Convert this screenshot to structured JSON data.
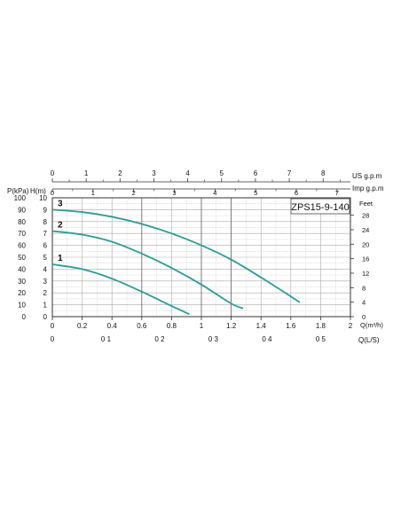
{
  "chart_data": {
    "type": "line",
    "model_label": "ZPS15-9-140",
    "x_axis": {
      "label": "Q(m³/h)",
      "min": 0,
      "max": 2,
      "ticks": [
        0,
        0.2,
        0.4,
        0.6,
        0.8,
        1,
        1.2,
        1.4,
        1.6,
        1.8,
        2
      ]
    },
    "y_axis": {
      "label": "H(m)",
      "min": 0,
      "max": 10,
      "ticks": [
        0,
        1,
        2,
        3,
        4,
        5,
        6,
        7,
        8,
        9,
        10
      ]
    },
    "kpa_axis": {
      "label": "P(kPa)",
      "ticks": [
        0,
        10,
        20,
        30,
        40,
        50,
        60,
        70,
        80,
        90,
        100
      ]
    },
    "feet_axis": {
      "label": "Feet",
      "ticks": [
        0,
        4,
        8,
        12,
        16,
        20,
        24,
        28
      ]
    },
    "us_gpm_axis": {
      "label": "US  g.p.m",
      "ticks": [
        0,
        1,
        2,
        3,
        4,
        5,
        6,
        7,
        8
      ]
    },
    "imp_gpm_axis": {
      "label": "Imp  g.p.m",
      "ticks": [
        0,
        1,
        2,
        3,
        4,
        5,
        6,
        7
      ]
    },
    "ls_axis": {
      "label": "Q(L/S)",
      "ticks": [
        "0",
        "0 1",
        "0 2",
        "0 3",
        "0 4",
        "0 5"
      ]
    },
    "grid": true,
    "line_color": "#2a9d96",
    "series": [
      {
        "name": "1",
        "x": [
          0,
          0.2,
          0.4,
          0.6,
          0.8,
          0.92
        ],
        "y": [
          4.4,
          4.0,
          3.2,
          2.1,
          0.9,
          0.2
        ]
      },
      {
        "name": "2",
        "x": [
          0,
          0.2,
          0.4,
          0.6,
          0.8,
          1.0,
          1.2,
          1.28
        ],
        "y": [
          7.2,
          6.9,
          6.3,
          5.3,
          4.1,
          2.7,
          1.1,
          0.7
        ]
      },
      {
        "name": "3",
        "x": [
          0,
          0.2,
          0.4,
          0.6,
          0.8,
          1.0,
          1.2,
          1.4,
          1.6,
          1.66
        ],
        "y": [
          9.0,
          8.8,
          8.4,
          7.8,
          7.0,
          6.0,
          4.8,
          3.3,
          1.7,
          1.2
        ]
      }
    ]
  }
}
